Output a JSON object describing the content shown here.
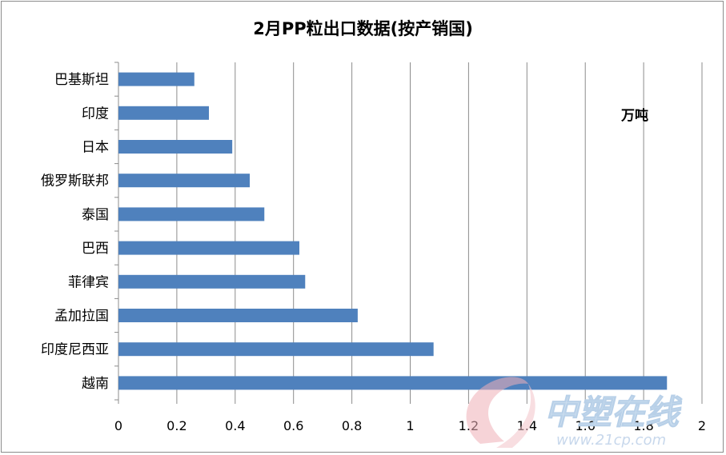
{
  "chart_data": {
    "type": "bar",
    "orientation": "horizontal",
    "title": "2月PP粒出口数据(按产销国)",
    "unit_label": "万吨",
    "categories": [
      "巴基斯坦",
      "印度",
      "日本",
      "俄罗斯联邦",
      "泰国",
      "巴西",
      "菲律宾",
      "孟加拉国",
      "印度尼西亚",
      "越南"
    ],
    "values": [
      0.26,
      0.31,
      0.39,
      0.45,
      0.5,
      0.62,
      0.64,
      0.82,
      1.08,
      1.88
    ],
    "xlim": [
      0,
      2
    ],
    "xticks": [
      "0",
      "0.2",
      "0.4",
      "0.6",
      "0.8",
      "1",
      "1.2",
      "1.4",
      "1.6",
      "1.8",
      "2"
    ],
    "xtick_values": [
      0,
      0.2,
      0.4,
      0.6,
      0.8,
      1.0,
      1.2,
      1.4,
      1.6,
      1.8,
      2.0
    ],
    "grid": "vertical",
    "bar_color": "#4f81bd",
    "grid_color": "#8c8c8c",
    "legend": "none"
  },
  "watermark": {
    "text": "中塑在线",
    "url": "www.21cp.com",
    "color": "#e8a0a8"
  }
}
